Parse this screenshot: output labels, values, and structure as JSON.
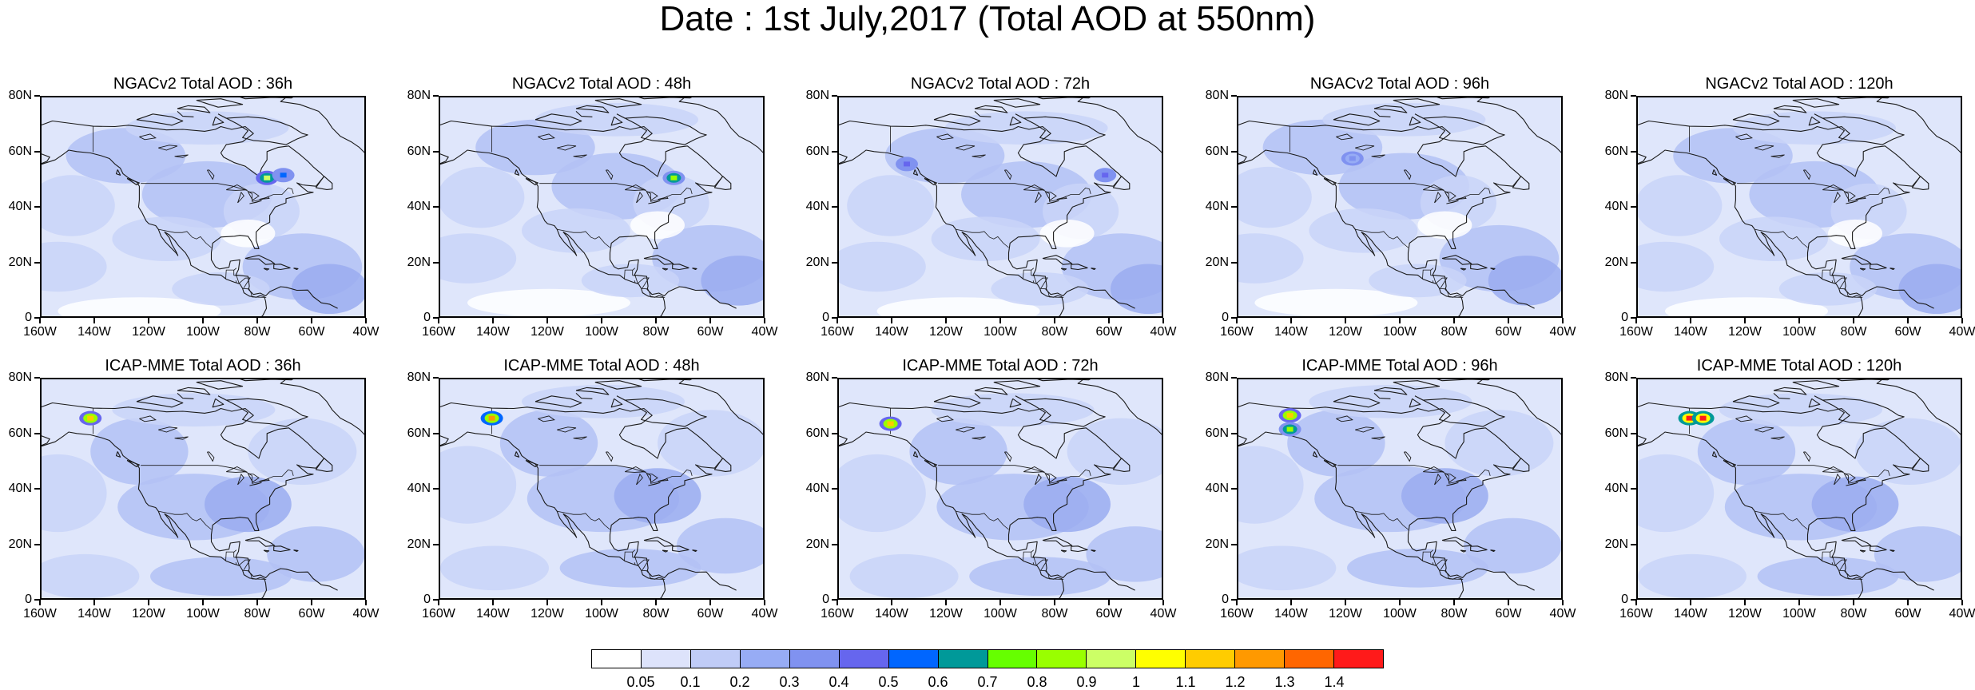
{
  "title": "Date : 1st July,2017 (Total AOD at 550nm)",
  "colors": {
    "coast": "#1a1a1a",
    "base": "#dfe6fb",
    "light": "#c9d4f8",
    "mid": "#b3c1f5",
    "deep": "#9aabf0",
    "deeper": "#8596ea"
  },
  "axes": {
    "lat_ticks": [
      "80N",
      "60N",
      "40N",
      "20N",
      "0"
    ],
    "lon_ticks": [
      "160W",
      "140W",
      "120W",
      "100W",
      "80W",
      "60W",
      "40W"
    ]
  },
  "panels": [
    {
      "title": "NGACv2 Total AOD : 36h",
      "hotspots": [
        {
          "lon": -77,
          "lat": 51,
          "level": 0.9
        },
        {
          "lon": -71,
          "lat": 52,
          "level": 0.5
        }
      ]
    },
    {
      "title": "NGACv2 Total AOD : 48h",
      "hotspots": [
        {
          "lon": -74,
          "lat": 51,
          "level": 0.8
        }
      ]
    },
    {
      "title": "NGACv2 Total AOD : 72h",
      "hotspots": [
        {
          "lon": -135,
          "lat": 56,
          "level": 0.4
        },
        {
          "lon": -62,
          "lat": 52,
          "level": 0.4
        }
      ]
    },
    {
      "title": "NGACv2 Total AOD : 96h",
      "hotspots": [
        {
          "lon": -118,
          "lat": 58,
          "level": 0.35
        }
      ]
    },
    {
      "title": "NGACv2 Total AOD : 120h",
      "hotspots": []
    },
    {
      "title": "ICAP-MME Total AOD : 36h",
      "hotspots": [
        {
          "lon": -142,
          "lat": 66,
          "level": 1.1
        }
      ]
    },
    {
      "title": "ICAP-MME Total AOD : 48h",
      "hotspots": [
        {
          "lon": -141,
          "lat": 66,
          "level": 1.2
        }
      ]
    },
    {
      "title": "ICAP-MME Total AOD : 72h",
      "hotspots": [
        {
          "lon": -141,
          "lat": 64,
          "level": 1.1
        }
      ]
    },
    {
      "title": "ICAP-MME Total AOD : 96h",
      "hotspots": [
        {
          "lon": -141,
          "lat": 67,
          "level": 1.1
        },
        {
          "lon": -141,
          "lat": 62,
          "level": 0.8
        }
      ]
    },
    {
      "title": "ICAP-MME Total AOD : 120h",
      "hotspots": [
        {
          "lon": -141,
          "lat": 66,
          "level": 1.4
        },
        {
          "lon": -136,
          "lat": 66,
          "level": 1.4
        }
      ]
    }
  ],
  "colorbar": {
    "labels": [
      "0.05",
      "0.1",
      "0.2",
      "0.3",
      "0.4",
      "0.5",
      "0.6",
      "0.7",
      "0.8",
      "0.9",
      "1",
      "1.1",
      "1.2",
      "1.3",
      "1.4"
    ],
    "colors": [
      "#ffffff",
      "#dde3fb",
      "#c0ccf7",
      "#97acf5",
      "#8092f0",
      "#6666ee",
      "#0066ff",
      "#009999",
      "#66ff00",
      "#99ff00",
      "#ccff66",
      "#ffff00",
      "#ffcc00",
      "#ff9900",
      "#ff6600",
      "#ff1a1a"
    ]
  }
}
